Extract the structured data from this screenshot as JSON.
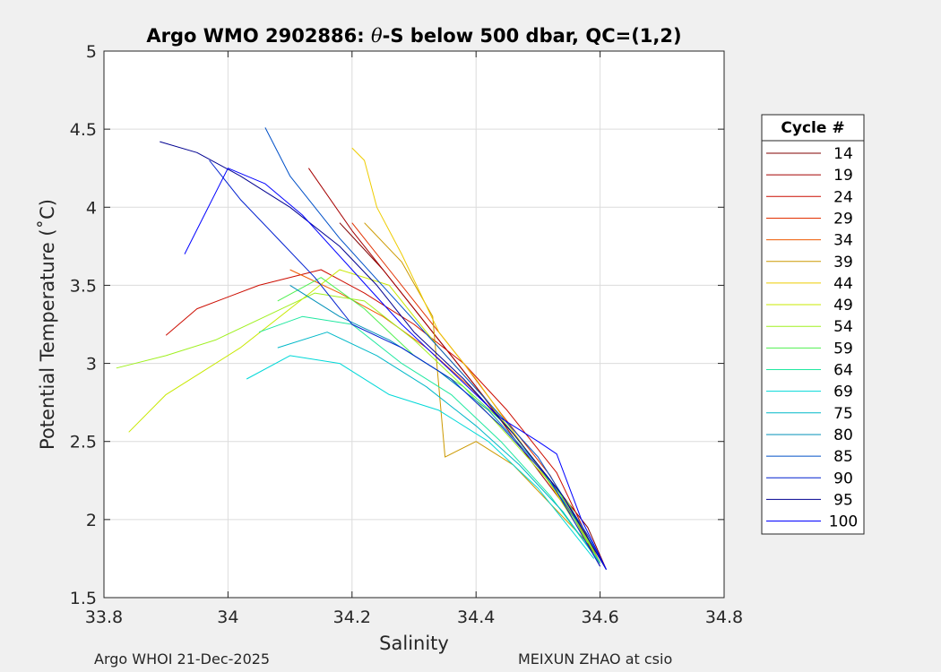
{
  "chart_data": {
    "type": "line",
    "title": "Argo WMO 2902886: θ-S below 500 dbar,  QC=(1,2)",
    "title_prefix": "Argo WMO 2902886: ",
    "title_theta": "θ",
    "title_suffix": "-S below 500 dbar,  QC=(1,2)",
    "xlabel": "Salinity",
    "ylabel": "Potential Temperature (˚C)",
    "xlim": [
      33.8,
      34.8
    ],
    "ylim": [
      1.5,
      5
    ],
    "xticks": [
      33.8,
      34,
      34.2,
      34.4,
      34.6,
      34.8
    ],
    "xtick_labels": [
      "33.8",
      "34",
      "34.2",
      "34.4",
      "34.6",
      "34.8"
    ],
    "yticks": [
      1.5,
      2,
      2.5,
      3,
      3.5,
      4,
      4.5,
      5
    ],
    "ytick_labels": [
      "1.5",
      "2",
      "2.5",
      "3",
      "3.5",
      "4",
      "4.5",
      "5"
    ],
    "grid": true,
    "legend": {
      "title": "Cycle #",
      "placement": "right-outside",
      "entries": [
        "14",
        "19",
        "24",
        "29",
        "34",
        "39",
        "44",
        "49",
        "54",
        "59",
        "64",
        "69",
        "75",
        "80",
        "85",
        "90",
        "95",
        "100"
      ],
      "colors": [
        "#800000",
        "#a50000",
        "#cc0d00",
        "#e23000",
        "#ee5a00",
        "#cc9900",
        "#eecc00",
        "#c8e800",
        "#a0f020",
        "#50f050",
        "#20e8a0",
        "#00d8d8",
        "#00b8c8",
        "#0090b8",
        "#0050c8",
        "#0020d0",
        "#000090",
        "#0000ff"
      ]
    },
    "series": [
      {
        "name": "14",
        "color": "#800000",
        "x": [
          34.18,
          34.25,
          34.3,
          34.36,
          34.42,
          34.5,
          34.58,
          34.61
        ],
        "y": [
          3.9,
          3.6,
          3.35,
          3.05,
          2.75,
          2.35,
          1.95,
          1.68
        ]
      },
      {
        "name": "19",
        "color": "#a50000",
        "x": [
          34.13,
          34.2,
          34.27,
          34.34,
          34.4,
          34.48,
          34.56,
          34.6
        ],
        "y": [
          4.25,
          3.85,
          3.5,
          3.15,
          2.85,
          2.42,
          2.0,
          1.7
        ]
      },
      {
        "name": "24",
        "color": "#cc0d00",
        "x": [
          33.9,
          33.95,
          34.05,
          34.15,
          34.22,
          34.3,
          34.38,
          34.45,
          34.53,
          34.6
        ],
        "y": [
          3.18,
          3.35,
          3.5,
          3.6,
          3.45,
          3.25,
          3.0,
          2.7,
          2.3,
          1.72
        ]
      },
      {
        "name": "29",
        "color": "#e23000",
        "x": [
          34.2,
          34.26,
          34.32,
          34.38,
          34.44,
          34.52,
          34.58
        ],
        "y": [
          3.9,
          3.6,
          3.3,
          3.0,
          2.68,
          2.28,
          1.85
        ]
      },
      {
        "name": "34",
        "color": "#ee5a00",
        "x": [
          34.1,
          34.18,
          34.25,
          34.32,
          34.39,
          34.46,
          34.54,
          34.59
        ],
        "y": [
          3.6,
          3.45,
          3.3,
          3.1,
          2.85,
          2.55,
          2.15,
          1.8
        ]
      },
      {
        "name": "39",
        "color": "#cc9900",
        "x": [
          34.22,
          34.28,
          34.33,
          34.35,
          34.4,
          34.46,
          34.52,
          34.58
        ],
        "y": [
          3.9,
          3.65,
          3.3,
          2.4,
          2.5,
          2.35,
          2.1,
          1.85
        ]
      },
      {
        "name": "44",
        "color": "#eecc00",
        "x": [
          34.2,
          34.22,
          34.24,
          34.28,
          34.34,
          34.4,
          34.48,
          34.56,
          34.6
        ],
        "y": [
          4.38,
          4.3,
          4.0,
          3.7,
          3.2,
          2.9,
          2.45,
          2.0,
          1.72
        ]
      },
      {
        "name": "49",
        "color": "#c8e800",
        "x": [
          33.84,
          33.9,
          33.96,
          34.02,
          34.1,
          34.18,
          34.26,
          34.34,
          34.42,
          34.5,
          34.58
        ],
        "y": [
          2.56,
          2.8,
          2.95,
          3.1,
          3.35,
          3.6,
          3.5,
          3.1,
          2.75,
          2.35,
          1.85
        ]
      },
      {
        "name": "54",
        "color": "#a0f020",
        "x": [
          33.82,
          33.9,
          33.98,
          34.06,
          34.14,
          34.22,
          34.3,
          34.38,
          34.46,
          34.55,
          34.6
        ],
        "y": [
          2.97,
          3.05,
          3.15,
          3.3,
          3.45,
          3.4,
          3.15,
          2.85,
          2.5,
          2.1,
          1.72
        ]
      },
      {
        "name": "59",
        "color": "#50f050",
        "x": [
          34.08,
          34.15,
          34.22,
          34.3,
          34.38,
          34.45,
          34.53,
          34.6
        ],
        "y": [
          3.4,
          3.55,
          3.35,
          3.05,
          2.85,
          2.6,
          2.2,
          1.72
        ]
      },
      {
        "name": "64",
        "color": "#20e8a0",
        "x": [
          34.05,
          34.12,
          34.2,
          34.28,
          34.36,
          34.44,
          34.52,
          34.6
        ],
        "y": [
          3.2,
          3.3,
          3.25,
          3.0,
          2.8,
          2.5,
          2.15,
          1.72
        ]
      },
      {
        "name": "69",
        "color": "#00d8d8",
        "x": [
          34.03,
          34.1,
          34.18,
          34.26,
          34.34,
          34.42,
          34.5,
          34.59
        ],
        "y": [
          2.9,
          3.05,
          3.0,
          2.8,
          2.7,
          2.5,
          2.2,
          1.75
        ]
      },
      {
        "name": "75",
        "color": "#00b8c8",
        "x": [
          34.08,
          34.16,
          34.24,
          34.32,
          34.4,
          34.47,
          34.54,
          34.6
        ],
        "y": [
          3.1,
          3.2,
          3.05,
          2.85,
          2.6,
          2.35,
          2.05,
          1.72
        ]
      },
      {
        "name": "80",
        "color": "#0090b8",
        "x": [
          34.1,
          34.18,
          34.26,
          34.34,
          34.42,
          34.5,
          34.57,
          34.61
        ],
        "y": [
          3.5,
          3.3,
          3.15,
          2.95,
          2.7,
          2.35,
          1.95,
          1.68
        ]
      },
      {
        "name": "85",
        "color": "#0050c8",
        "x": [
          34.06,
          34.1,
          34.18,
          34.26,
          34.34,
          34.42,
          34.5,
          34.58,
          34.61
        ],
        "y": [
          4.51,
          4.2,
          3.8,
          3.45,
          3.1,
          2.75,
          2.4,
          1.9,
          1.68
        ]
      },
      {
        "name": "90",
        "color": "#0020d0",
        "x": [
          33.97,
          34.02,
          34.08,
          34.14,
          34.2,
          34.28,
          34.36,
          34.44,
          34.52,
          34.6
        ],
        "y": [
          4.3,
          4.05,
          3.8,
          3.55,
          3.25,
          3.1,
          2.9,
          2.6,
          2.25,
          1.7
        ]
      },
      {
        "name": "95",
        "color": "#000090",
        "x": [
          33.89,
          33.95,
          34.02,
          34.1,
          34.18,
          34.24,
          34.3,
          34.38,
          34.46,
          34.54,
          34.61
        ],
        "y": [
          4.42,
          4.35,
          4.2,
          4.0,
          3.75,
          3.5,
          3.2,
          2.9,
          2.55,
          2.15,
          1.68
        ]
      },
      {
        "name": "100",
        "color": "#0000ff",
        "x": [
          33.93,
          34.0,
          34.06,
          34.12,
          34.2,
          34.28,
          34.36,
          34.44,
          34.5,
          34.53,
          34.57,
          34.61
        ],
        "y": [
          3.7,
          4.25,
          4.15,
          3.95,
          3.6,
          3.25,
          2.95,
          2.65,
          2.5,
          2.42,
          2.0,
          1.68
        ]
      }
    ]
  },
  "footer": {
    "left": "Argo WHOI 21-Dec-2025",
    "right": "MEIXUN ZHAO at csio"
  }
}
